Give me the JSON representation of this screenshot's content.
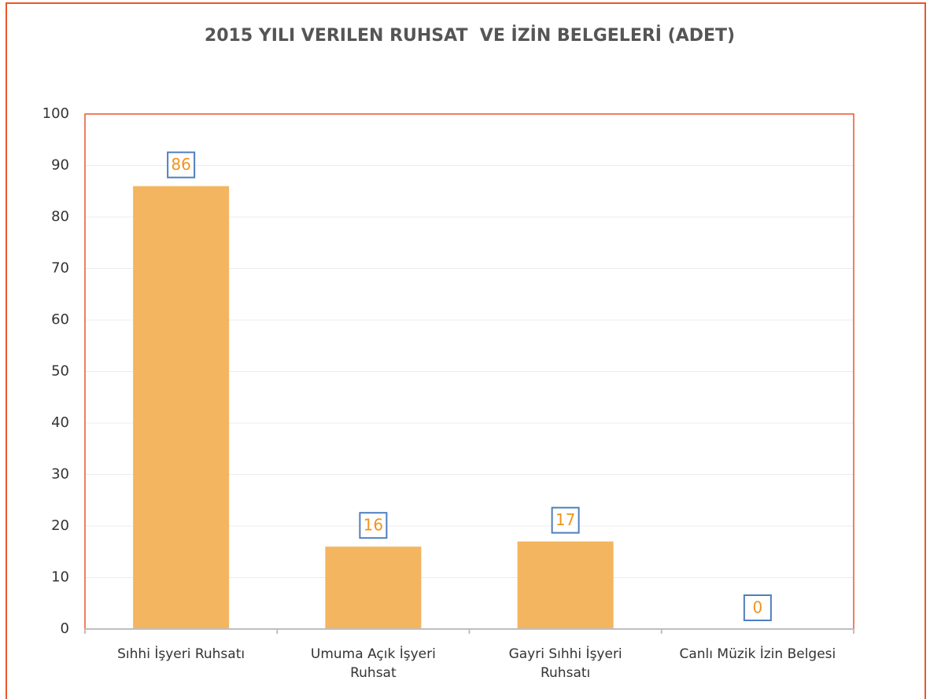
{
  "chart_data": {
    "type": "bar",
    "title": "2015 YILI VERILEN RUHSAT  VE İZİN BELGELERİ (ADET)",
    "categories": [
      "Sıhhi İşyeri Ruhsatı",
      "Umuma Açık İşyeri Ruhsat",
      "Gayri Sıhhi İşyeri Ruhsatı",
      "Canlı Müzik İzin Belgesi"
    ],
    "values": [
      86,
      16,
      17,
      0
    ],
    "color": "#f3b55f",
    "ylim": [
      0,
      100
    ],
    "yticks": [
      0,
      10,
      20,
      30,
      40,
      50,
      60,
      70,
      80,
      90,
      100
    ],
    "grid": true
  }
}
